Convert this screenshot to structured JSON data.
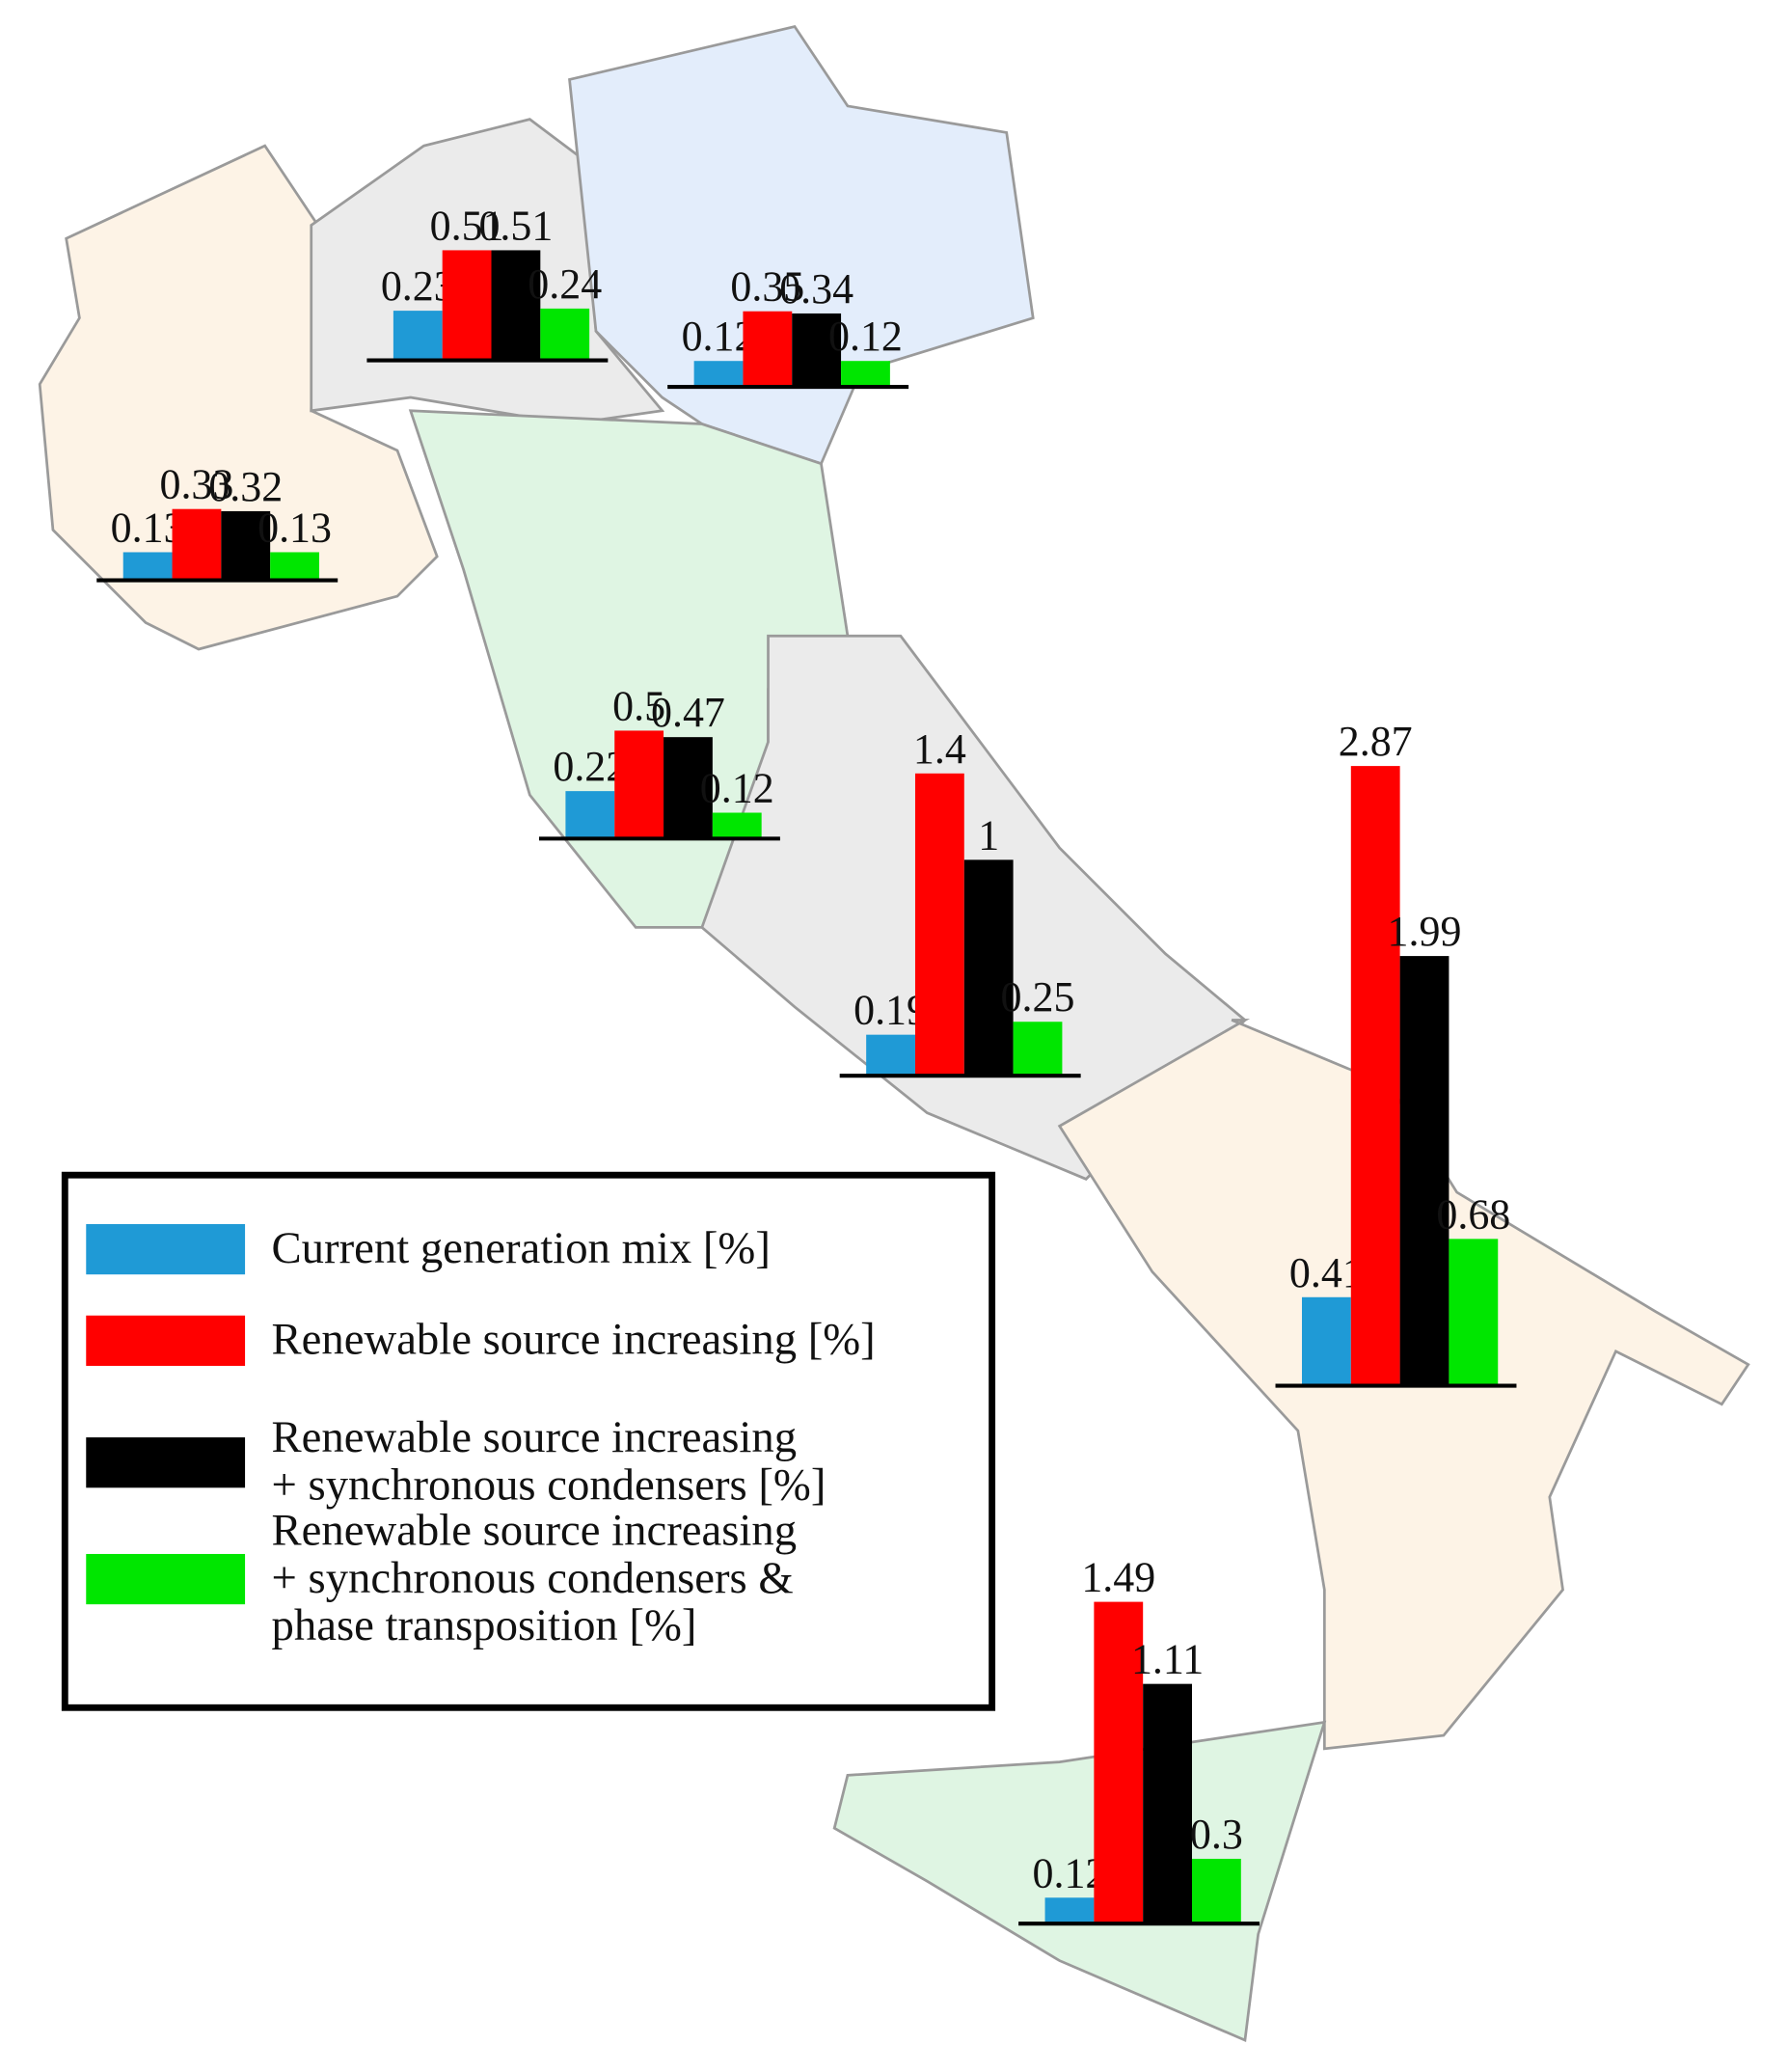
{
  "chart_data": {
    "type": "bar",
    "categories": [
      null,
      null,
      null,
      null,
      null,
      null,
      null
    ],
    "series": [
      {
        "name": "Current generation mix [%]",
        "color": "#1f9ad6",
        "values": [
          0.13,
          0.23,
          0.12,
          0.22,
          0.19,
          0.41,
          0.12
        ]
      },
      {
        "name": "Renewable source increasing [%]",
        "color": "#ff0000",
        "values": [
          0.33,
          0.51,
          0.35,
          0.5,
          1.4,
          2.87,
          1.49
        ]
      },
      {
        "name": "Renewable source increasing + synchronous condensers [%]",
        "color": "#000000",
        "values": [
          0.32,
          0.51,
          0.34,
          0.47,
          1,
          1.99,
          1.11
        ]
      },
      {
        "name": "Renewable source increasing + synchronous condensers & phase transposition [%]",
        "color": "#00e600",
        "values": [
          0.13,
          0.24,
          0.12,
          0.12,
          0.25,
          0.68,
          0.3
        ]
      }
    ]
  }
}
